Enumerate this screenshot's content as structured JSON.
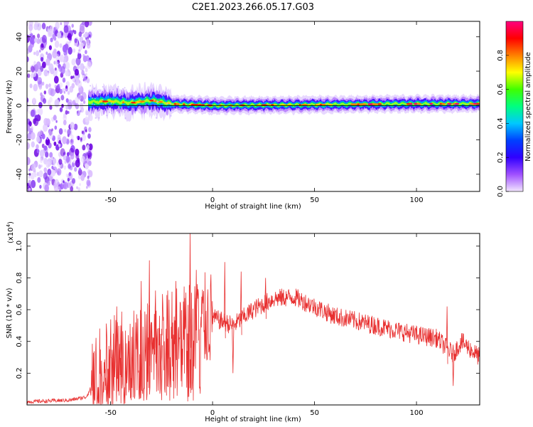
{
  "title": "C2E1.2023.266.05.17.G03",
  "chart_data": [
    {
      "type": "heatmap",
      "xlabel": "Height of straight line (km)",
      "ylabel": "Frequency (Hz)",
      "xlim": [
        -91,
        131
      ],
      "ylim": [
        -50,
        49
      ],
      "xticks": [
        -50,
        0,
        50,
        100
      ],
      "yticks": [
        -40,
        -20,
        0,
        20,
        40
      ],
      "xtick_labels": [
        "-50",
        "0",
        "50",
        "100"
      ],
      "ytick_labels": [
        "-40",
        "-20",
        "0",
        "20",
        "40"
      ],
      "colorbar": {
        "label": "Normalized spectral amplitude",
        "range": [
          0,
          1
        ],
        "ticks": [
          0,
          0.2,
          0.4,
          0.6,
          0.8
        ],
        "tick_labels": [
          "0.0",
          "0.2",
          "0.4",
          "0.6",
          "0.8"
        ],
        "colors": [
          "#f2e6ff",
          "#a050ff",
          "#3000ff",
          "#0040ff",
          "#00c8ff",
          "#00ff80",
          "#40ff00",
          "#ffff00",
          "#ff8000",
          "#ff0000",
          "#ff0080"
        ]
      },
      "ridge_center": [
        {
          "x": -61,
          "y": 2
        },
        {
          "x": -50,
          "y": 2.5
        },
        {
          "x": -40,
          "y": 1.5
        },
        {
          "x": -30,
          "y": 3
        },
        {
          "x": -20,
          "y": 1
        },
        {
          "x": 0,
          "y": 0
        },
        {
          "x": 50,
          "y": 0.5
        },
        {
          "x": 100,
          "y": 1
        },
        {
          "x": 131,
          "y": 1
        }
      ],
      "noise_region_x": [
        -91,
        -61
      ],
      "zero_line_y": 0
    },
    {
      "type": "line",
      "xlabel": "Height of straight line (km)",
      "ylabel": "SNR (10 * v/v)",
      "ylabel_multiplier": "(x10",
      "ylabel_exponent": "4",
      "ylabel_close": ")",
      "xlim": [
        -91,
        131
      ],
      "ylim": [
        0,
        1.08
      ],
      "xticks": [
        -50,
        0,
        50,
        100
      ],
      "yticks": [
        0.2,
        0.4,
        0.6,
        0.8,
        1.0
      ],
      "xtick_labels": [
        "-50",
        "0",
        "50",
        "100"
      ],
      "ytick_labels": [
        "0.2",
        "0.4",
        "0.6",
        "0.8",
        "1.0"
      ],
      "color": "#e83030",
      "envelope": [
        {
          "x": -91,
          "y": 0.02
        },
        {
          "x": -70,
          "y": 0.03
        },
        {
          "x": -62,
          "y": 0.05
        },
        {
          "x": -58,
          "y": 0.15
        },
        {
          "x": -50,
          "y": 0.25
        },
        {
          "x": -40,
          "y": 0.3
        },
        {
          "x": -30,
          "y": 0.35
        },
        {
          "x": -20,
          "y": 0.4
        },
        {
          "x": -12,
          "y": 0.45
        },
        {
          "x": -5,
          "y": 0.52
        },
        {
          "x": 0,
          "y": 0.55
        },
        {
          "x": 10,
          "y": 0.5
        },
        {
          "x": 20,
          "y": 0.6
        },
        {
          "x": 30,
          "y": 0.67
        },
        {
          "x": 40,
          "y": 0.68
        },
        {
          "x": 50,
          "y": 0.62
        },
        {
          "x": 60,
          "y": 0.56
        },
        {
          "x": 70,
          "y": 0.53
        },
        {
          "x": 80,
          "y": 0.5
        },
        {
          "x": 90,
          "y": 0.47
        },
        {
          "x": 100,
          "y": 0.44
        },
        {
          "x": 110,
          "y": 0.42
        },
        {
          "x": 118,
          "y": 0.32
        },
        {
          "x": 122,
          "y": 0.4
        },
        {
          "x": 131,
          "y": 0.3
        }
      ],
      "spikes": [
        {
          "x": -47,
          "y": 0.62
        },
        {
          "x": -45,
          "y": 0.5
        },
        {
          "x": -35,
          "y": 0.78
        },
        {
          "x": -31,
          "y": 0.91
        },
        {
          "x": -28,
          "y": 0.72
        },
        {
          "x": -22,
          "y": 0.72
        },
        {
          "x": -18,
          "y": 0.78
        },
        {
          "x": -11,
          "y": 1.08
        },
        {
          "x": -8,
          "y": 0.85
        },
        {
          "x": 6,
          "y": 0.9
        },
        {
          "x": 14,
          "y": 0.84
        },
        {
          "x": 26,
          "y": 0.8
        },
        {
          "x": 115,
          "y": 0.62
        }
      ],
      "dips": [
        {
          "x": -52,
          "y": 0.02
        },
        {
          "x": -40,
          "y": 0.05
        },
        {
          "x": -25,
          "y": 0.03
        },
        {
          "x": -12,
          "y": 0.05
        },
        {
          "x": 10,
          "y": 0.2
        },
        {
          "x": 118,
          "y": 0.12
        }
      ]
    }
  ]
}
